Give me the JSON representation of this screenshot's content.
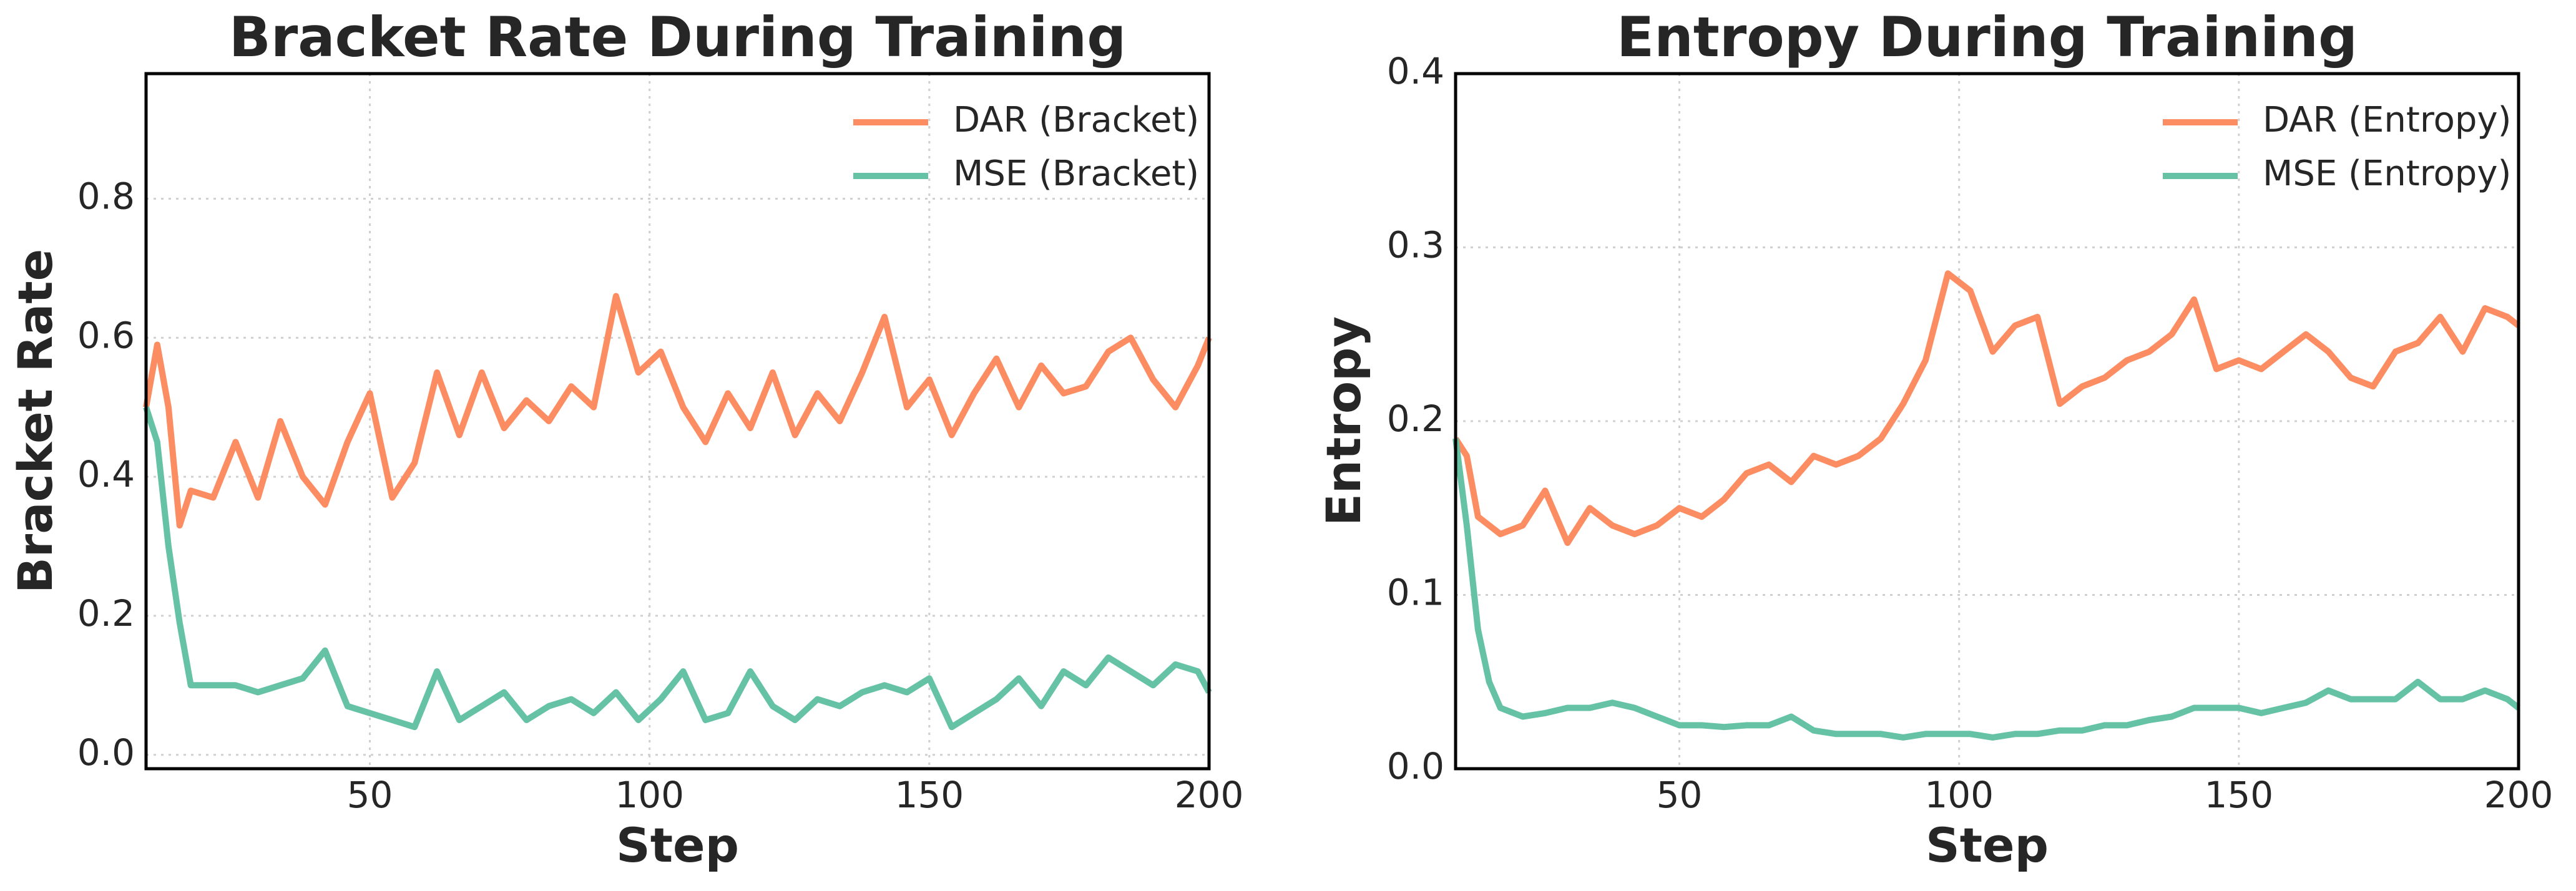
{
  "chart_data": [
    {
      "type": "line",
      "title": "Bracket Rate During Training",
      "x_label": "Step",
      "y_label": "Bracket Rate",
      "x": [
        10,
        12,
        14,
        16,
        18,
        22,
        26,
        30,
        34,
        38,
        42,
        46,
        50,
        54,
        58,
        62,
        66,
        70,
        74,
        78,
        82,
        86,
        90,
        94,
        98,
        102,
        106,
        110,
        114,
        118,
        122,
        126,
        130,
        134,
        138,
        142,
        146,
        150,
        154,
        158,
        162,
        166,
        170,
        174,
        178,
        182,
        186,
        190,
        194,
        198,
        200
      ],
      "series": [
        {
          "name": "DAR (Bracket)",
          "color": "#fc8d62",
          "values": [
            0.5,
            0.59,
            0.5,
            0.33,
            0.38,
            0.37,
            0.45,
            0.37,
            0.48,
            0.4,
            0.36,
            0.45,
            0.52,
            0.37,
            0.42,
            0.55,
            0.46,
            0.55,
            0.47,
            0.51,
            0.48,
            0.53,
            0.5,
            0.66,
            0.55,
            0.58,
            0.5,
            0.45,
            0.52,
            0.47,
            0.55,
            0.46,
            0.52,
            0.48,
            0.55,
            0.63,
            0.5,
            0.54,
            0.46,
            0.52,
            0.57,
            0.5,
            0.56,
            0.52,
            0.53,
            0.58,
            0.6,
            0.54,
            0.5,
            0.56,
            0.6
          ]
        },
        {
          "name": "MSE (Bracket)",
          "color": "#66c2a5",
          "values": [
            0.5,
            0.45,
            0.3,
            0.19,
            0.1,
            0.1,
            0.1,
            0.09,
            0.1,
            0.11,
            0.15,
            0.07,
            0.06,
            0.05,
            0.04,
            0.12,
            0.05,
            0.07,
            0.09,
            0.05,
            0.07,
            0.08,
            0.06,
            0.09,
            0.05,
            0.08,
            0.12,
            0.05,
            0.06,
            0.12,
            0.07,
            0.05,
            0.08,
            0.07,
            0.09,
            0.1,
            0.09,
            0.11,
            0.04,
            0.06,
            0.08,
            0.11,
            0.07,
            0.12,
            0.1,
            0.14,
            0.12,
            0.1,
            0.13,
            0.12,
            0.09
          ]
        }
      ],
      "xlim": [
        10,
        200
      ],
      "xticks": [
        50,
        100,
        150,
        200
      ],
      "ylim": [
        -0.02,
        0.98
      ],
      "yticks": [
        {
          "value": 0,
          "label": "0.0"
        },
        0.2,
        0.4,
        0.6,
        0.8
      ],
      "grid": true,
      "legend": "upper right"
    },
    {
      "type": "line",
      "title": "Entropy During Training",
      "x_label": "Step",
      "y_label": "Entropy",
      "x": [
        10,
        12,
        14,
        16,
        18,
        22,
        26,
        30,
        34,
        38,
        42,
        46,
        50,
        54,
        58,
        62,
        66,
        70,
        74,
        78,
        82,
        86,
        90,
        94,
        98,
        102,
        106,
        110,
        114,
        118,
        122,
        126,
        130,
        134,
        138,
        142,
        146,
        150,
        154,
        158,
        162,
        166,
        170,
        174,
        178,
        182,
        186,
        190,
        194,
        198,
        200
      ],
      "series": [
        {
          "name": "DAR (Entropy)",
          "color": "#fc8d62",
          "values": [
            0.19,
            0.18,
            0.145,
            0.14,
            0.135,
            0.14,
            0.16,
            0.13,
            0.15,
            0.14,
            0.135,
            0.14,
            0.15,
            0.145,
            0.155,
            0.17,
            0.175,
            0.165,
            0.18,
            0.175,
            0.18,
            0.19,
            0.21,
            0.235,
            0.285,
            0.275,
            0.24,
            0.255,
            0.26,
            0.21,
            0.22,
            0.225,
            0.235,
            0.24,
            0.25,
            0.27,
            0.23,
            0.235,
            0.23,
            0.24,
            0.25,
            0.24,
            0.225,
            0.22,
            0.24,
            0.245,
            0.26,
            0.24,
            0.265,
            0.26,
            0.255
          ]
        },
        {
          "name": "MSE (Entropy)",
          "color": "#66c2a5",
          "values": [
            0.19,
            0.14,
            0.08,
            0.05,
            0.035,
            0.03,
            0.032,
            0.035,
            0.035,
            0.038,
            0.035,
            0.03,
            0.025,
            0.025,
            0.024,
            0.025,
            0.025,
            0.03,
            0.022,
            0.02,
            0.02,
            0.02,
            0.018,
            0.02,
            0.02,
            0.02,
            0.018,
            0.02,
            0.02,
            0.022,
            0.022,
            0.025,
            0.025,
            0.028,
            0.03,
            0.035,
            0.035,
            0.035,
            0.032,
            0.035,
            0.038,
            0.045,
            0.04,
            0.04,
            0.04,
            0.05,
            0.04,
            0.04,
            0.045,
            0.04,
            0.035
          ]
        }
      ],
      "xlim": [
        10,
        200
      ],
      "xticks": [
        50,
        100,
        150,
        200
      ],
      "ylim": [
        0,
        0.4
      ],
      "yticks": [
        {
          "value": 0,
          "label": "0.0"
        },
        0.1,
        0.2,
        0.3,
        0.4
      ],
      "grid": true,
      "legend": "upper right"
    }
  ]
}
